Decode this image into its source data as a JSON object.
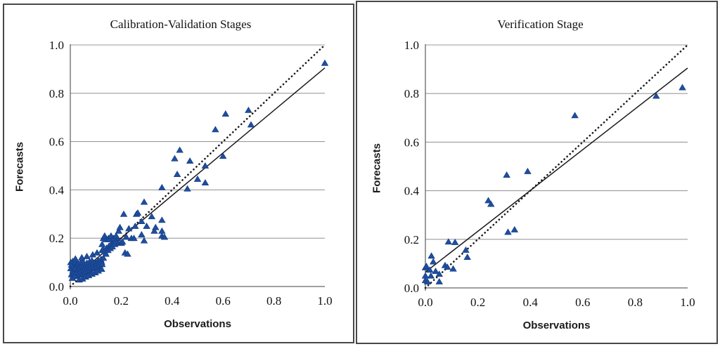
{
  "figure": {
    "marker_color": "#1F4E9F",
    "marker_edge_color": "#123A7E",
    "grid_color": "#9b9b9b",
    "axis_color": "#666666",
    "line_color": "#1a1a1a",
    "panel_border_color": "#484848",
    "background": "#ffffff"
  },
  "chart_data": [
    {
      "type": "scatter",
      "title": "Calibration-Validation Stages",
      "xlabel": "Observations",
      "ylabel": "Forecasts",
      "xlim": [
        0,
        1
      ],
      "ylim": [
        0,
        1
      ],
      "xticks": [
        0.0,
        0.2,
        0.4,
        0.6,
        0.8,
        1.0
      ],
      "yticks": [
        0.0,
        0.2,
        0.4,
        0.6,
        0.8,
        1.0
      ],
      "grid": "horizontal",
      "legend": "none",
      "lines": [
        {
          "name": "one-to-one-line",
          "style": "dotted",
          "from": [
            0,
            0
          ],
          "to": [
            1,
            1
          ]
        },
        {
          "name": "trend-line",
          "style": "solid",
          "from": [
            0,
            0.025
          ],
          "to": [
            1,
            0.905
          ]
        }
      ],
      "series": [
        {
          "name": "forecast-vs-observation",
          "marker": "triangle",
          "points": [
            [
              0.002,
              0.075
            ],
            [
              0.002,
              0.1
            ],
            [
              0.005,
              0.05
            ],
            [
              0.005,
              0.09
            ],
            [
              0.008,
              0.035
            ],
            [
              0.01,
              0.065
            ],
            [
              0.01,
              0.105
            ],
            [
              0.013,
              0.055
            ],
            [
              0.015,
              0.085
            ],
            [
              0.018,
              0.045
            ],
            [
              0.02,
              0.075
            ],
            [
              0.02,
              0.1
            ],
            [
              0.023,
              0.06
            ],
            [
              0.025,
              0.09
            ],
            [
              0.028,
              0.042
            ],
            [
              0.03,
              0.07
            ],
            [
              0.03,
              0.095
            ],
            [
              0.033,
              0.058
            ],
            [
              0.035,
              0.08
            ],
            [
              0.038,
              0.048
            ],
            [
              0.04,
              0.072
            ],
            [
              0.04,
              0.1
            ],
            [
              0.043,
              0.062
            ],
            [
              0.045,
              0.088
            ],
            [
              0.048,
              0.052
            ],
            [
              0.05,
              0.078
            ],
            [
              0.05,
              0.103
            ],
            [
              0.053,
              0.068
            ],
            [
              0.055,
              0.092
            ],
            [
              0.058,
              0.058
            ],
            [
              0.06,
              0.082
            ],
            [
              0.063,
              0.072
            ],
            [
              0.065,
              0.098
            ],
            [
              0.068,
              0.064
            ],
            [
              0.07,
              0.088
            ],
            [
              0.073,
              0.078
            ],
            [
              0.075,
              0.102
            ],
            [
              0.078,
              0.068
            ],
            [
              0.08,
              0.092
            ],
            [
              0.083,
              0.082
            ],
            [
              0.085,
              0.108
            ],
            [
              0.088,
              0.074
            ],
            [
              0.09,
              0.098
            ],
            [
              0.093,
              0.088
            ],
            [
              0.095,
              0.078
            ],
            [
              0.1,
              0.102
            ],
            [
              0.103,
              0.092
            ],
            [
              0.105,
              0.082
            ],
            [
              0.11,
              0.108
            ],
            [
              0.113,
              0.098
            ],
            [
              0.115,
              0.088
            ],
            [
              0.12,
              0.112
            ],
            [
              0.123,
              0.102
            ],
            [
              0.125,
              0.092
            ],
            [
              0.13,
              0.118
            ],
            [
              0.035,
              0.028
            ],
            [
              0.048,
              0.032
            ],
            [
              0.06,
              0.04
            ],
            [
              0.072,
              0.046
            ],
            [
              0.085,
              0.052
            ],
            [
              0.098,
              0.058
            ],
            [
              0.11,
              0.065
            ],
            [
              0.123,
              0.072
            ],
            [
              0.02,
              0.115
            ],
            [
              0.045,
              0.12
            ],
            [
              0.065,
              0.125
            ],
            [
              0.088,
              0.132
            ],
            [
              0.105,
              0.14
            ],
            [
              0.125,
              0.15
            ],
            [
              0.13,
              0.155
            ],
            [
              0.135,
              0.145
            ],
            [
              0.14,
              0.135
            ],
            [
              0.143,
              0.16
            ],
            [
              0.148,
              0.15
            ],
            [
              0.152,
              0.168
            ],
            [
              0.157,
              0.158
            ],
            [
              0.16,
              0.175
            ],
            [
              0.165,
              0.165
            ],
            [
              0.17,
              0.185
            ],
            [
              0.175,
              0.175
            ],
            [
              0.18,
              0.19
            ],
            [
              0.185,
              0.2
            ],
            [
              0.19,
              0.18
            ],
            [
              0.125,
              0.175
            ],
            [
              0.13,
              0.2
            ],
            [
              0.135,
              0.21
            ],
            [
              0.14,
              0.195
            ],
            [
              0.15,
              0.2
            ],
            [
              0.155,
              0.195
            ],
            [
              0.16,
              0.21
            ],
            [
              0.17,
              0.2
            ],
            [
              0.18,
              0.21
            ],
            [
              0.19,
              0.23
            ],
            [
              0.195,
              0.245
            ],
            [
              0.2,
              0.18
            ],
            [
              0.205,
              0.185
            ],
            [
              0.21,
              0.3
            ],
            [
              0.215,
              0.14
            ],
            [
              0.225,
              0.135
            ],
            [
              0.22,
              0.205
            ],
            [
              0.23,
              0.24
            ],
            [
              0.24,
              0.2
            ],
            [
              0.25,
              0.2
            ],
            [
              0.255,
              0.25
            ],
            [
              0.26,
              0.3
            ],
            [
              0.265,
              0.305
            ],
            [
              0.28,
              0.215
            ],
            [
              0.28,
              0.27
            ],
            [
              0.29,
              0.35
            ],
            [
              0.29,
              0.19
            ],
            [
              0.3,
              0.25
            ],
            [
              0.32,
              0.29
            ],
            [
              0.33,
              0.23
            ],
            [
              0.335,
              0.245
            ],
            [
              0.36,
              0.275
            ],
            [
              0.36,
              0.21
            ],
            [
              0.37,
              0.205
            ],
            [
              0.36,
              0.23
            ],
            [
              0.36,
              0.41
            ],
            [
              0.41,
              0.53
            ],
            [
              0.42,
              0.465
            ],
            [
              0.43,
              0.565
            ],
            [
              0.46,
              0.405
            ],
            [
              0.47,
              0.52
            ],
            [
              0.5,
              0.445
            ],
            [
              0.53,
              0.5
            ],
            [
              0.53,
              0.43
            ],
            [
              0.57,
              0.65
            ],
            [
              0.6,
              0.54
            ],
            [
              0.61,
              0.715
            ],
            [
              0.7,
              0.73
            ],
            [
              0.71,
              0.67
            ],
            [
              1.0,
              0.925
            ]
          ]
        }
      ]
    },
    {
      "type": "scatter",
      "title": "Verification Stage",
      "xlabel": "Observations",
      "ylabel": "Forecasts",
      "xlim": [
        0,
        1
      ],
      "ylim": [
        0,
        1
      ],
      "xticks": [
        0.0,
        0.2,
        0.4,
        0.6,
        0.8,
        1.0
      ],
      "yticks": [
        0.0,
        0.2,
        0.4,
        0.6,
        0.8,
        1.0
      ],
      "grid": "horizontal",
      "legend": "none",
      "lines": [
        {
          "name": "one-to-one-line",
          "style": "dotted",
          "from": [
            0,
            0
          ],
          "to": [
            1,
            1
          ]
        },
        {
          "name": "trend-line",
          "style": "solid",
          "from": [
            0,
            0.065
          ],
          "to": [
            1,
            0.905
          ]
        }
      ],
      "series": [
        {
          "name": "forecast-vs-observation",
          "marker": "triangle",
          "points": [
            [
              0.0,
              0.084
            ],
            [
              0.004,
              0.089
            ],
            [
              0.0,
              0.05
            ],
            [
              0.021,
              0.05
            ],
            [
              0.017,
              0.074
            ],
            [
              0.039,
              0.069
            ],
            [
              0.053,
              0.057
            ],
            [
              0.023,
              0.132
            ],
            [
              0.03,
              0.108
            ],
            [
              0.075,
              0.093
            ],
            [
              0.084,
              0.086
            ],
            [
              0.106,
              0.079
            ],
            [
              0.0,
              0.031
            ],
            [
              0.008,
              0.026
            ],
            [
              0.053,
              0.026
            ],
            [
              0.088,
              0.19
            ],
            [
              0.113,
              0.188
            ],
            [
              0.154,
              0.156
            ],
            [
              0.16,
              0.127
            ],
            [
              0.24,
              0.36
            ],
            [
              0.25,
              0.345
            ],
            [
              0.31,
              0.465
            ],
            [
              0.39,
              0.48
            ],
            [
              0.315,
              0.23
            ],
            [
              0.34,
              0.24
            ],
            [
              0.57,
              0.71
            ],
            [
              0.88,
              0.79
            ],
            [
              0.98,
              0.825
            ]
          ]
        }
      ]
    }
  ]
}
